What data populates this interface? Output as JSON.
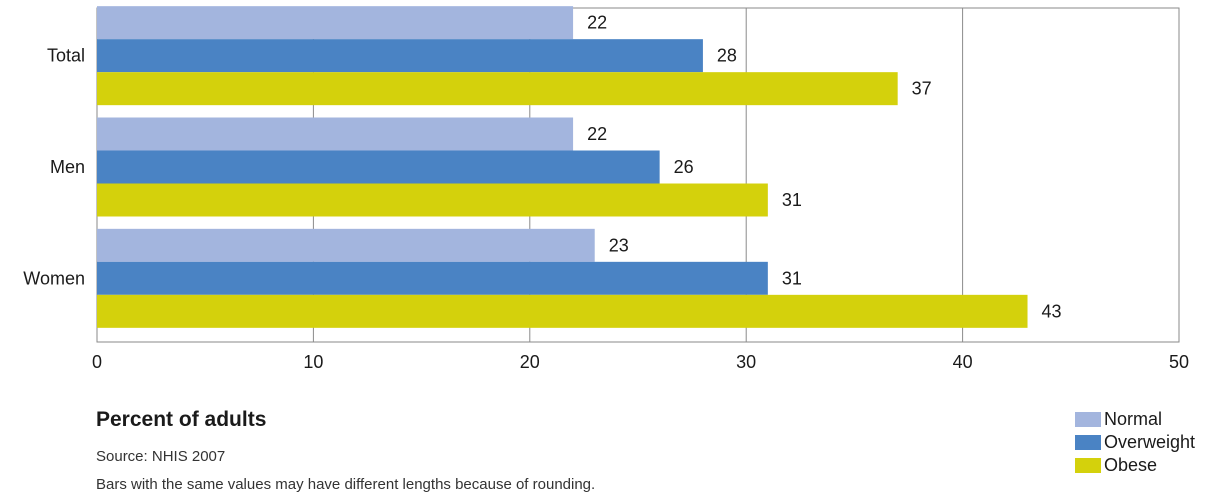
{
  "chart_data": {
    "type": "bar",
    "orientation": "horizontal",
    "categories": [
      "Total",
      "Men",
      "Women"
    ],
    "series": [
      {
        "name": "Normal",
        "color": "#a3b5de",
        "values": [
          22,
          22,
          23
        ],
        "labels": [
          "22",
          "22",
          "23"
        ]
      },
      {
        "name": "Overweight",
        "color": "#4a83c4",
        "values": [
          28,
          26,
          31
        ],
        "labels": [
          "28",
          "26",
          "31"
        ]
      },
      {
        "name": "Obese",
        "color": "#d4d10c",
        "values": [
          37,
          31,
          43
        ],
        "labels": [
          "37",
          "31",
          "43"
        ]
      }
    ],
    "xlim": [
      0,
      50
    ],
    "xticks": [
      "0",
      "10",
      "20",
      "30",
      "40",
      "50"
    ],
    "xlabel": "Percent of adults",
    "grid": true,
    "legend_position": "bottom-right"
  },
  "footer": {
    "source": "Source: NHIS 2007",
    "note": "Bars with the same values may have different lengths because of rounding."
  }
}
